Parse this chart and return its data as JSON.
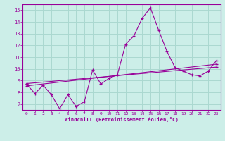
{
  "background_color": "#cceee8",
  "grid_color": "#aad8d0",
  "line_color": "#990099",
  "marker": "+",
  "xlabel": "Windchill (Refroidissement éolien,°C)",
  "xlim": [
    -0.5,
    23.5
  ],
  "ylim": [
    6.5,
    15.5
  ],
  "yticks": [
    7,
    8,
    9,
    10,
    11,
    12,
    13,
    14,
    15
  ],
  "xticks": [
    0,
    1,
    2,
    3,
    4,
    5,
    6,
    7,
    8,
    9,
    10,
    11,
    12,
    13,
    14,
    15,
    16,
    17,
    18,
    19,
    20,
    21,
    22,
    23
  ],
  "line1_x": [
    0,
    1,
    2,
    3,
    4,
    5,
    6,
    7,
    8,
    9,
    10,
    11,
    12,
    13,
    14,
    15,
    16,
    17,
    18,
    19,
    20,
    21,
    22,
    23
  ],
  "line1_y": [
    8.7,
    7.9,
    8.6,
    7.8,
    6.6,
    7.8,
    6.8,
    7.2,
    9.9,
    8.7,
    9.2,
    9.5,
    12.1,
    12.8,
    14.3,
    15.2,
    13.3,
    11.5,
    10.1,
    9.8,
    9.5,
    9.4,
    9.8,
    10.7
  ],
  "line2_x": [
    0,
    23
  ],
  "line2_y": [
    8.55,
    10.4
  ],
  "line3_x": [
    0,
    23
  ],
  "line3_y": [
    8.75,
    10.15
  ]
}
